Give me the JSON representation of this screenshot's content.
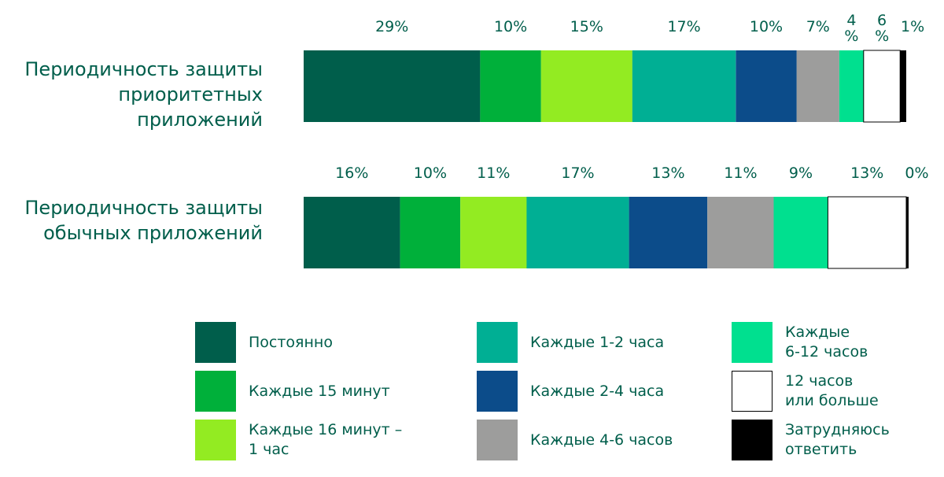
{
  "chart_data": {
    "type": "bar",
    "orientation": "horizontal-stacked",
    "categories": [
      "Периодичность защиты\nприоритетных приложений",
      "Периодичность защиты\nобычных приложений"
    ],
    "series": [
      {
        "name": "Постоянно",
        "color": "#005e4b",
        "values": [
          29,
          16
        ],
        "labels": [
          "29%",
          "16%"
        ]
      },
      {
        "name": "Каждые 15 минут",
        "color": "#00b03a",
        "values": [
          10,
          10
        ],
        "labels": [
          "10%",
          "10%"
        ]
      },
      {
        "name": "Каждые 16 минут –\n1 час",
        "color": "#93eb22",
        "values": [
          15,
          11
        ],
        "labels": [
          "15%",
          "11%"
        ]
      },
      {
        "name": "Каждые 1-2 часа",
        "color": "#00af94",
        "values": [
          17,
          17
        ],
        "labels": [
          "17%",
          "17%"
        ]
      },
      {
        "name": "Каждые 2-4 часа",
        "color": "#0c4c8a",
        "values": [
          10,
          13
        ],
        "labels": [
          "10%",
          "13%"
        ]
      },
      {
        "name": "Каждые 4-6 часов",
        "color": "#9d9d9c",
        "values": [
          7,
          11
        ],
        "labels": [
          "7%",
          "11%"
        ]
      },
      {
        "name": "Каждые\n6-12 часов",
        "color": "#00e08f",
        "values": [
          4,
          9
        ],
        "labels": [
          "4\n%",
          "9%"
        ]
      },
      {
        "name": "12 часов\nили больше",
        "color": "#ffffff",
        "values": [
          6,
          13
        ],
        "labels": [
          "6\n%",
          "13%"
        ]
      },
      {
        "name": "Затрудняюсь\nответить",
        "color": "#000000",
        "values": [
          1,
          0
        ],
        "labels": [
          "1%",
          "0%"
        ]
      }
    ]
  }
}
